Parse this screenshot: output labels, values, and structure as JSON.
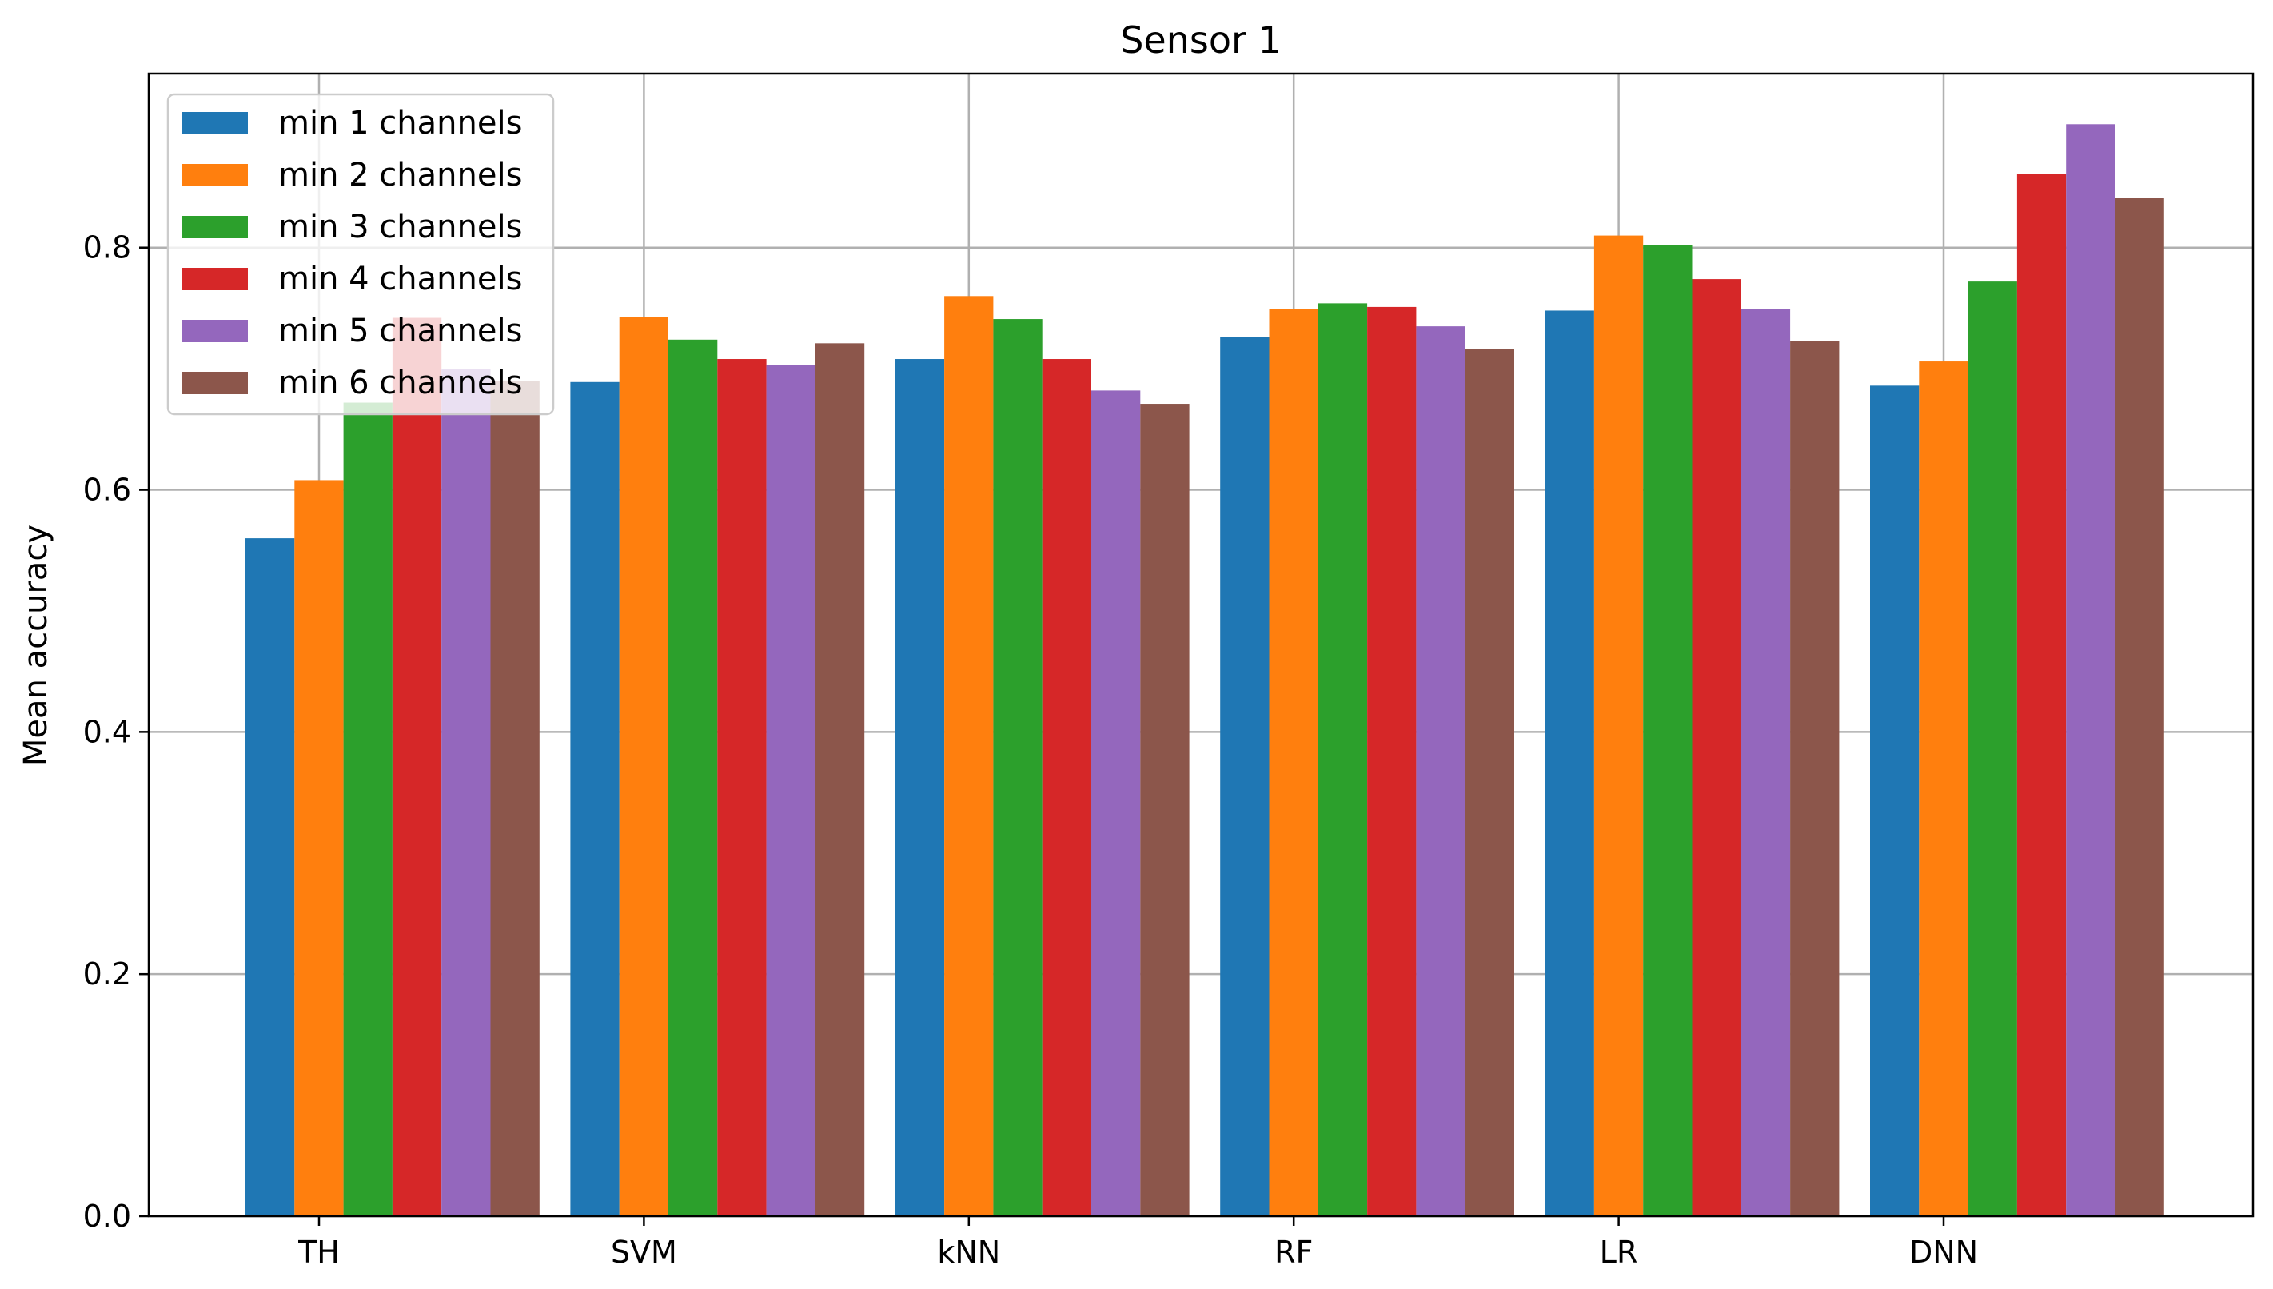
{
  "chart_data": {
    "type": "bar",
    "title": "Sensor 1",
    "xlabel": "",
    "ylabel": "Mean accuracy",
    "ylim": [
      0,
      0.9438
    ],
    "yticks": [
      0.0,
      0.2,
      0.4,
      0.6,
      0.8
    ],
    "ytick_labels": [
      "0.0",
      "0.2",
      "0.4",
      "0.6",
      "0.8"
    ],
    "grid": true,
    "legend_position": "top-left",
    "categories": [
      "TH",
      "SVM",
      "kNN",
      "RF",
      "LR",
      "DNN"
    ],
    "series": [
      {
        "name": "min 1 channels",
        "color": "#1f77b4",
        "values": [
          0.56,
          0.689,
          0.708,
          0.726,
          0.748,
          0.686
        ]
      },
      {
        "name": "min 2 channels",
        "color": "#ff7f0e",
        "values": [
          0.608,
          0.743,
          0.76,
          0.749,
          0.81,
          0.706
        ]
      },
      {
        "name": "min 3 channels",
        "color": "#2ca02c",
        "values": [
          0.672,
          0.724,
          0.741,
          0.754,
          0.802,
          0.772
        ]
      },
      {
        "name": "min 4 channels",
        "color": "#d62728",
        "values": [
          0.742,
          0.708,
          0.708,
          0.751,
          0.774,
          0.861
        ]
      },
      {
        "name": "min 5 channels",
        "color": "#9467bd",
        "values": [
          0.7,
          0.703,
          0.682,
          0.735,
          0.749,
          0.902
        ]
      },
      {
        "name": "min 6 channels",
        "color": "#8c564b",
        "values": [
          0.69,
          0.721,
          0.671,
          0.716,
          0.723,
          0.841
        ]
      }
    ]
  }
}
